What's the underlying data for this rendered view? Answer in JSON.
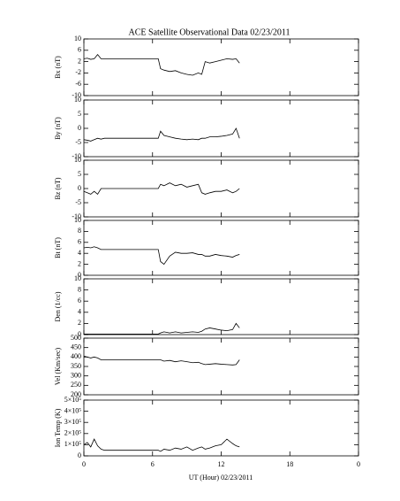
{
  "title": "ACE Satellite Observational Data   02/23/2011",
  "xlabel": "UT (Hour)   02/23/2011",
  "chart_data": [
    {
      "type": "line",
      "ylabel": "Bx (nT)",
      "color": "#000000",
      "xlim": [
        0,
        24
      ],
      "xticks": [
        0,
        6,
        12,
        18,
        {
          "value": 24,
          "label": "0"
        }
      ],
      "ylim": [
        -10,
        10
      ],
      "yticks": [
        -10,
        -6,
        -2,
        2,
        6,
        10
      ],
      "x": [
        0,
        0.3,
        0.6,
        0.9,
        1.2,
        1.5,
        1.8,
        2.0,
        6.5,
        6.7,
        7,
        7.5,
        8,
        8.5,
        9,
        9.5,
        10,
        10.3,
        10.6,
        11,
        11.5,
        12,
        12.5,
        13,
        13.3,
        13.6
      ],
      "values": [
        3,
        3.2,
        2.8,
        3,
        4.5,
        3,
        3,
        3,
        3,
        -0.5,
        -1,
        -1.5,
        -1.2,
        -2,
        -2.5,
        -2.8,
        -2,
        -2.5,
        2,
        1.5,
        2,
        2.5,
        3,
        2.8,
        3,
        1.5
      ]
    },
    {
      "type": "line",
      "ylabel": "By (nT)",
      "color": "#000000",
      "xlim": [
        0,
        24
      ],
      "xticks": [
        0,
        6,
        12,
        18,
        {
          "value": 24,
          "label": "0"
        }
      ],
      "ylim": [
        -10,
        10
      ],
      "yticks": [
        -10,
        -5,
        0,
        5,
        10
      ],
      "x": [
        0,
        0.3,
        0.6,
        0.9,
        1.2,
        1.5,
        1.8,
        2.0,
        6.5,
        6.7,
        7,
        7.5,
        8,
        8.5,
        9,
        9.5,
        10,
        10.3,
        10.6,
        11,
        11.5,
        12,
        12.5,
        13,
        13.3,
        13.6
      ],
      "values": [
        -4,
        -4.2,
        -4.5,
        -4,
        -3.5,
        -3.8,
        -3.5,
        -3.5,
        -3.5,
        -1,
        -2.5,
        -3,
        -3.5,
        -3.8,
        -4,
        -3.8,
        -4,
        -3.5,
        -3.5,
        -3,
        -3,
        -2.8,
        -2.5,
        -2,
        0,
        -3.5
      ]
    },
    {
      "type": "line",
      "ylabel": "Bz (nT)",
      "color": "#000000",
      "xlim": [
        0,
        24
      ],
      "xticks": [
        0,
        6,
        12,
        18,
        {
          "value": 24,
          "label": "0"
        }
      ],
      "ylim": [
        -10,
        10
      ],
      "yticks": [
        -10,
        -5,
        0,
        5,
        10
      ],
      "x": [
        0,
        0.3,
        0.6,
        0.9,
        1.2,
        1.5,
        1.8,
        2.0,
        6.5,
        6.7,
        7,
        7.5,
        8,
        8.5,
        9,
        9.5,
        10,
        10.3,
        10.6,
        11,
        11.5,
        12,
        12.5,
        13,
        13.3,
        13.6
      ],
      "values": [
        -1,
        -1.5,
        -2,
        -1,
        -2,
        0,
        0,
        0,
        0,
        1.5,
        1,
        2,
        1,
        1.5,
        0.5,
        1,
        1.5,
        -1.5,
        -2,
        -1.5,
        -1,
        -1,
        -0.5,
        -1.5,
        -1,
        0
      ]
    },
    {
      "type": "line",
      "ylabel": "Bt (nT)",
      "color": "#000000",
      "xlim": [
        0,
        24
      ],
      "xticks": [
        0,
        6,
        12,
        18,
        {
          "value": 24,
          "label": "0"
        }
      ],
      "ylim": [
        0,
        10
      ],
      "yticks": [
        0,
        2,
        4,
        6,
        8,
        10
      ],
      "x": [
        0,
        0.3,
        0.6,
        0.9,
        1.2,
        1.5,
        1.8,
        2.0,
        6.5,
        6.7,
        7,
        7.5,
        8,
        8.5,
        9,
        9.5,
        10,
        10.3,
        10.6,
        11,
        11.5,
        12,
        12.5,
        13,
        13.3,
        13.6
      ],
      "values": [
        5,
        5.1,
        5,
        5.2,
        5,
        4.7,
        4.7,
        4.7,
        4.7,
        2.5,
        2,
        3.5,
        4.2,
        4,
        4,
        4.1,
        3.8,
        3.8,
        3.5,
        3.5,
        3.8,
        3.6,
        3.5,
        3.3,
        3.6,
        3.8
      ]
    },
    {
      "type": "line",
      "ylabel": "Den (1/cc)",
      "color": "#000000",
      "xlim": [
        0,
        24
      ],
      "xticks": [
        0,
        6,
        12,
        18,
        {
          "value": 24,
          "label": "0"
        }
      ],
      "ylim": [
        0,
        10
      ],
      "yticks": [
        0,
        2,
        4,
        6,
        8,
        10
      ],
      "x": [
        0,
        0.3,
        0.6,
        0.9,
        1.2,
        1.5,
        1.8,
        2.0,
        6.5,
        6.7,
        7,
        7.5,
        8,
        8.5,
        9,
        9.5,
        10,
        10.3,
        10.6,
        11,
        11.5,
        12,
        12.5,
        13,
        13.3,
        13.6
      ],
      "values": [
        0.1,
        0.1,
        0.1,
        0.1,
        0.1,
        0.1,
        0.1,
        0.1,
        0.1,
        0.3,
        0.5,
        0.3,
        0.5,
        0.3,
        0.4,
        0.5,
        0.4,
        0.6,
        1,
        1.2,
        1,
        0.8,
        0.7,
        0.9,
        2,
        1.2
      ]
    },
    {
      "type": "line",
      "ylabel": "Vel (Km/sec)",
      "color": "#000000",
      "xlim": [
        0,
        24
      ],
      "xticks": [
        0,
        6,
        12,
        18,
        {
          "value": 24,
          "label": "0"
        }
      ],
      "ylim": [
        200,
        500
      ],
      "yticks": [
        200,
        250,
        300,
        350,
        400,
        450,
        500
      ],
      "x": [
        0,
        0.3,
        0.6,
        0.9,
        1.2,
        1.5,
        1.8,
        2.0,
        6.5,
        6.7,
        7,
        7.5,
        8,
        8.5,
        9,
        9.5,
        10,
        10.3,
        10.6,
        11,
        11.5,
        12,
        12.5,
        13,
        13.3,
        13.6
      ],
      "values": [
        405,
        400,
        395,
        400,
        395,
        385,
        385,
        385,
        385,
        385,
        378,
        382,
        375,
        380,
        375,
        370,
        372,
        365,
        360,
        362,
        365,
        362,
        360,
        358,
        360,
        385
      ]
    },
    {
      "type": "line",
      "ylabel": "Ion Temp (K)",
      "color": "#000000",
      "xlim": [
        0,
        24
      ],
      "xticks": [
        0,
        6,
        12,
        18,
        {
          "value": 24,
          "label": "0"
        }
      ],
      "ylim": [
        0,
        500000
      ],
      "yticks": [
        0,
        {
          "value": 100000,
          "label": "1×10⁵"
        },
        {
          "value": 200000,
          "label": "2×10⁵"
        },
        {
          "value": 300000,
          "label": "3×10⁵"
        },
        {
          "value": 400000,
          "label": "4×10⁵"
        },
        {
          "value": 500000,
          "label": "5×10⁵"
        }
      ],
      "x": [
        0,
        0.3,
        0.6,
        0.9,
        1.2,
        1.5,
        1.8,
        2.0,
        6.5,
        6.7,
        7,
        7.5,
        8,
        8.5,
        9,
        9.5,
        10,
        10.3,
        10.6,
        11,
        11.5,
        12,
        12.5,
        13,
        13.3,
        13.6
      ],
      "values": [
        100000,
        120000,
        80000,
        150000,
        90000,
        60000,
        50000,
        50000,
        50000,
        40000,
        60000,
        50000,
        70000,
        60000,
        80000,
        50000,
        70000,
        80000,
        60000,
        70000,
        90000,
        100000,
        150000,
        110000,
        90000,
        80000
      ]
    }
  ]
}
